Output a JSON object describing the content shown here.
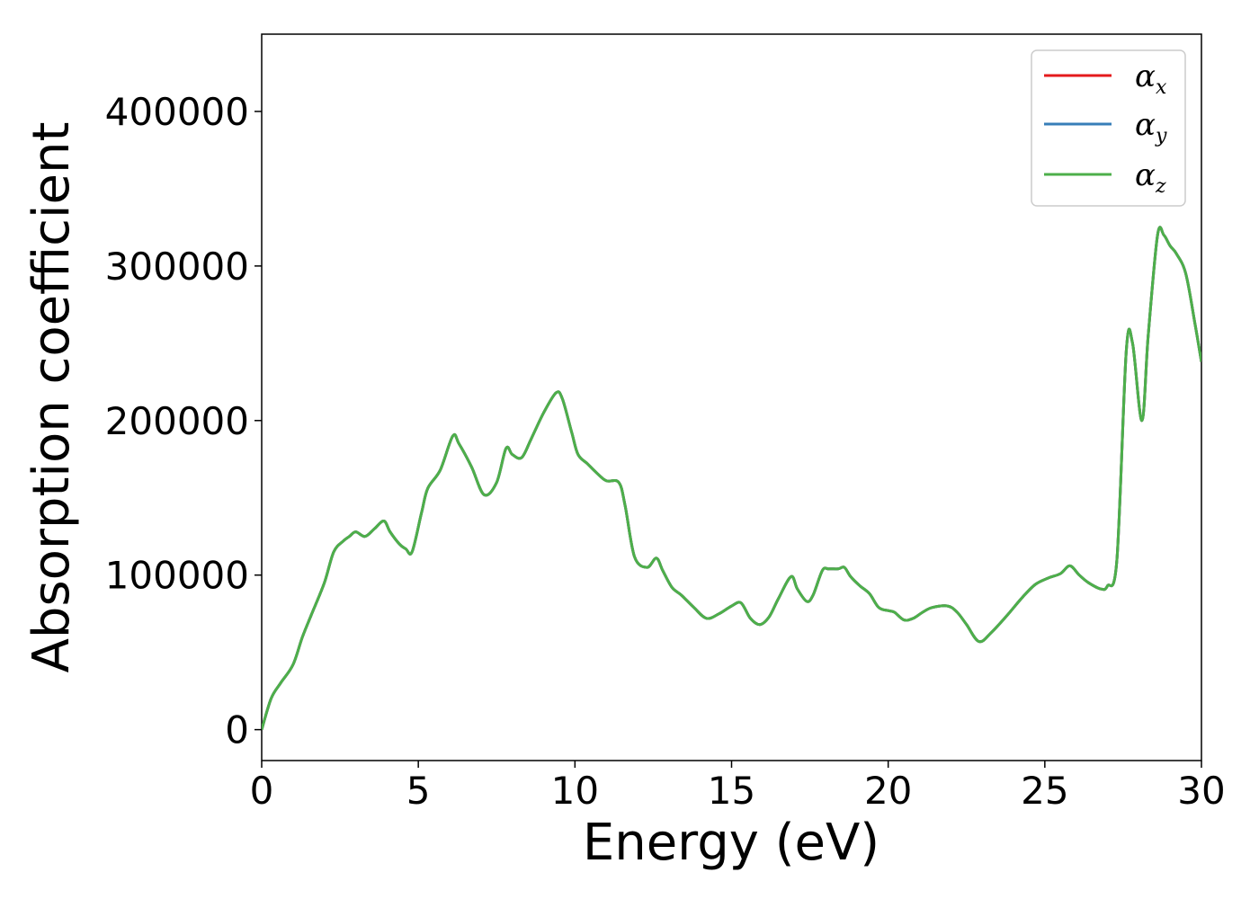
{
  "chart_data": {
    "type": "line",
    "xlabel": "Energy (eV)",
    "ylabel": "Absorption coefficient",
    "xlim": [
      0,
      30
    ],
    "ylim": [
      -20000,
      450000
    ],
    "xticks": [
      0,
      5,
      10,
      15,
      20,
      25,
      30
    ],
    "yticks": [
      0,
      100000,
      200000,
      300000,
      400000
    ],
    "xtick_labels": [
      "0",
      "5",
      "10",
      "15",
      "20",
      "25",
      "30"
    ],
    "ytick_labels": [
      "0",
      "100000",
      "200000",
      "300000",
      "400000"
    ],
    "grid": false,
    "legend_position": "top-right",
    "series": [
      {
        "name": "α",
        "subscript": "x",
        "color": "#e41a1c"
      },
      {
        "name": "α",
        "subscript": "y",
        "color": "#377eb8"
      },
      {
        "name": "α",
        "subscript": "z",
        "color": "#4daf4a"
      }
    ],
    "x": [
      0,
      0.3,
      0.6,
      1.0,
      1.3,
      1.6,
      2.0,
      2.3,
      2.6,
      2.8,
      3.0,
      3.3,
      3.6,
      3.9,
      4.1,
      4.4,
      4.6,
      4.8,
      5.1,
      5.3,
      5.7,
      6.1,
      6.3,
      6.7,
      7.1,
      7.5,
      7.8,
      8.0,
      8.3,
      8.6,
      9.0,
      9.4,
      9.6,
      9.9,
      10.1,
      10.4,
      10.7,
      11.0,
      11.4,
      11.6,
      11.9,
      12.3,
      12.6,
      12.8,
      13.1,
      13.4,
      13.8,
      14.2,
      14.6,
      15.0,
      15.3,
      15.6,
      15.9,
      16.2,
      16.5,
      16.9,
      17.1,
      17.4,
      17.6,
      17.9,
      18.1,
      18.4,
      18.6,
      18.8,
      19.1,
      19.4,
      19.7,
      20.0,
      20.2,
      20.5,
      20.8,
      21.1,
      21.4,
      21.9,
      22.2,
      22.5,
      22.9,
      23.3,
      23.8,
      24.3,
      24.7,
      25.1,
      25.5,
      25.8,
      26.1,
      26.4,
      26.8,
      27.0,
      27.3,
      27.6,
      27.8,
      28.1,
      28.3,
      28.6,
      28.8,
      29.0,
      29.2,
      29.5,
      29.8,
      30.0
    ],
    "y": [
      0,
      20000,
      30000,
      42000,
      60000,
      75000,
      95000,
      115000,
      122000,
      125000,
      128000,
      125000,
      130000,
      135000,
      128000,
      120000,
      117000,
      115000,
      140000,
      156000,
      168000,
      190000,
      185000,
      170000,
      152000,
      160000,
      182000,
      178000,
      176000,
      188000,
      205000,
      218000,
      214000,
      192000,
      178000,
      172000,
      166000,
      161000,
      160000,
      145000,
      112000,
      105000,
      111000,
      103000,
      92000,
      87000,
      79000,
      72000,
      75000,
      80000,
      82000,
      72000,
      68000,
      73000,
      85000,
      99000,
      91000,
      83000,
      87000,
      103000,
      104000,
      104000,
      105000,
      99000,
      93000,
      88000,
      79000,
      77000,
      76000,
      71000,
      72000,
      76000,
      79000,
      80000,
      76000,
      68000,
      57000,
      63000,
      74000,
      86000,
      94000,
      98000,
      101000,
      106000,
      100000,
      95000,
      91000,
      93000,
      110000,
      245000,
      250000,
      200000,
      255000,
      320000,
      320000,
      313000,
      308000,
      295000,
      262000,
      238000
    ]
  }
}
